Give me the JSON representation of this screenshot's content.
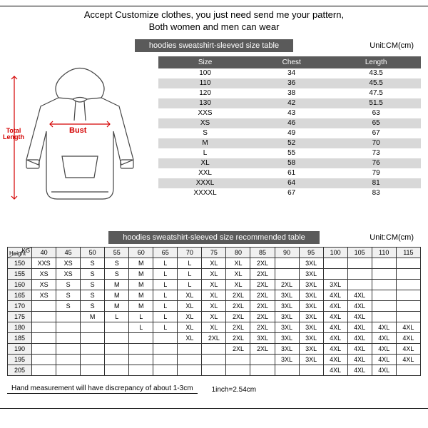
{
  "header": {
    "line1": "Accept Customize clothes, you just need send me your pattern,",
    "line2": "Both women and men can wear"
  },
  "title1": "hoodies sweatshirt-sleeved size table",
  "unit": "Unit:CM(cm)",
  "diagram": {
    "bust_label": "Bust",
    "length_label": "Total Length",
    "bust_color": "#d40000",
    "outline_color": "#444444"
  },
  "size_table": {
    "columns": [
      "Size",
      "Chest",
      "Length"
    ],
    "rows": [
      [
        "100",
        "34",
        "43.5"
      ],
      [
        "110",
        "36",
        "45.5"
      ],
      [
        "120",
        "38",
        "47.5"
      ],
      [
        "130",
        "42",
        "51.5"
      ],
      [
        "XXS",
        "43",
        "63"
      ],
      [
        "XS",
        "46",
        "65"
      ],
      [
        "S",
        "49",
        "67"
      ],
      [
        "M",
        "52",
        "70"
      ],
      [
        "L",
        "55",
        "73"
      ],
      [
        "XL",
        "58",
        "76"
      ],
      [
        "XXL",
        "61",
        "79"
      ],
      [
        "XXXL",
        "64",
        "81"
      ],
      [
        "XXXXL",
        "67",
        "83"
      ]
    ],
    "header_bg": "#5a5a5a",
    "alt_bg": "#d8d8d8"
  },
  "title2": "hoodies sweatshirt-sleeved size recommended table",
  "rec_table": {
    "kg_label": "KG",
    "height_label": "Height",
    "weights": [
      "40",
      "45",
      "50",
      "55",
      "60",
      "65",
      "70",
      "75",
      "80",
      "85",
      "90",
      "95",
      "100",
      "105",
      "110",
      "115"
    ],
    "heights": [
      "150",
      "155",
      "160",
      "165",
      "170",
      "175",
      "180",
      "185",
      "190",
      "195",
      "205"
    ],
    "grid": [
      [
        "XXS",
        "XS",
        "S",
        "S",
        "M",
        "L",
        "L",
        "XL",
        "XL",
        "2XL",
        "",
        "3XL",
        "",
        "",
        "",
        ""
      ],
      [
        "XS",
        "XS",
        "S",
        "S",
        "M",
        "L",
        "L",
        "XL",
        "XL",
        "2XL",
        "",
        "3XL",
        "",
        "",
        "",
        ""
      ],
      [
        "XS",
        "S",
        "S",
        "M",
        "M",
        "L",
        "L",
        "XL",
        "XL",
        "2XL",
        "2XL",
        "3XL",
        "3XL",
        "",
        "",
        ""
      ],
      [
        "XS",
        "S",
        "S",
        "M",
        "M",
        "L",
        "XL",
        "XL",
        "2XL",
        "2XL",
        "3XL",
        "3XL",
        "4XL",
        "4XL",
        "",
        ""
      ],
      [
        "",
        "S",
        "S",
        "M",
        "M",
        "L",
        "XL",
        "XL",
        "2XL",
        "2XL",
        "3XL",
        "3XL",
        "4XL",
        "4XL",
        "",
        ""
      ],
      [
        "",
        "",
        "M",
        "L",
        "L",
        "L",
        "XL",
        "XL",
        "2XL",
        "2XL",
        "3XL",
        "3XL",
        "4XL",
        "4XL",
        "",
        ""
      ],
      [
        "",
        "",
        "",
        "",
        "L",
        "L",
        "XL",
        "XL",
        "2XL",
        "2XL",
        "3XL",
        "3XL",
        "4XL",
        "4XL",
        "4XL",
        "4XL"
      ],
      [
        "",
        "",
        "",
        "",
        "",
        "",
        "XL",
        "2XL",
        "2XL",
        "3XL",
        "3XL",
        "3XL",
        "4XL",
        "4XL",
        "4XL",
        "4XL"
      ],
      [
        "",
        "",
        "",
        "",
        "",
        "",
        "",
        "",
        "2XL",
        "2XL",
        "3XL",
        "3XL",
        "4XL",
        "4XL",
        "4XL",
        "4XL"
      ],
      [
        "",
        "",
        "",
        "",
        "",
        "",
        "",
        "",
        "",
        "",
        "3XL",
        "3XL",
        "4XL",
        "4XL",
        "4XL",
        "4XL"
      ],
      [
        "",
        "",
        "",
        "",
        "",
        "",
        "",
        "",
        "",
        "",
        "",
        "",
        "4XL",
        "4XL",
        "4XL",
        ""
      ]
    ]
  },
  "footer": {
    "measure": "Hand measurement will have discrepancy of about 1-3cm",
    "inch": "1inch=2.54cm"
  }
}
